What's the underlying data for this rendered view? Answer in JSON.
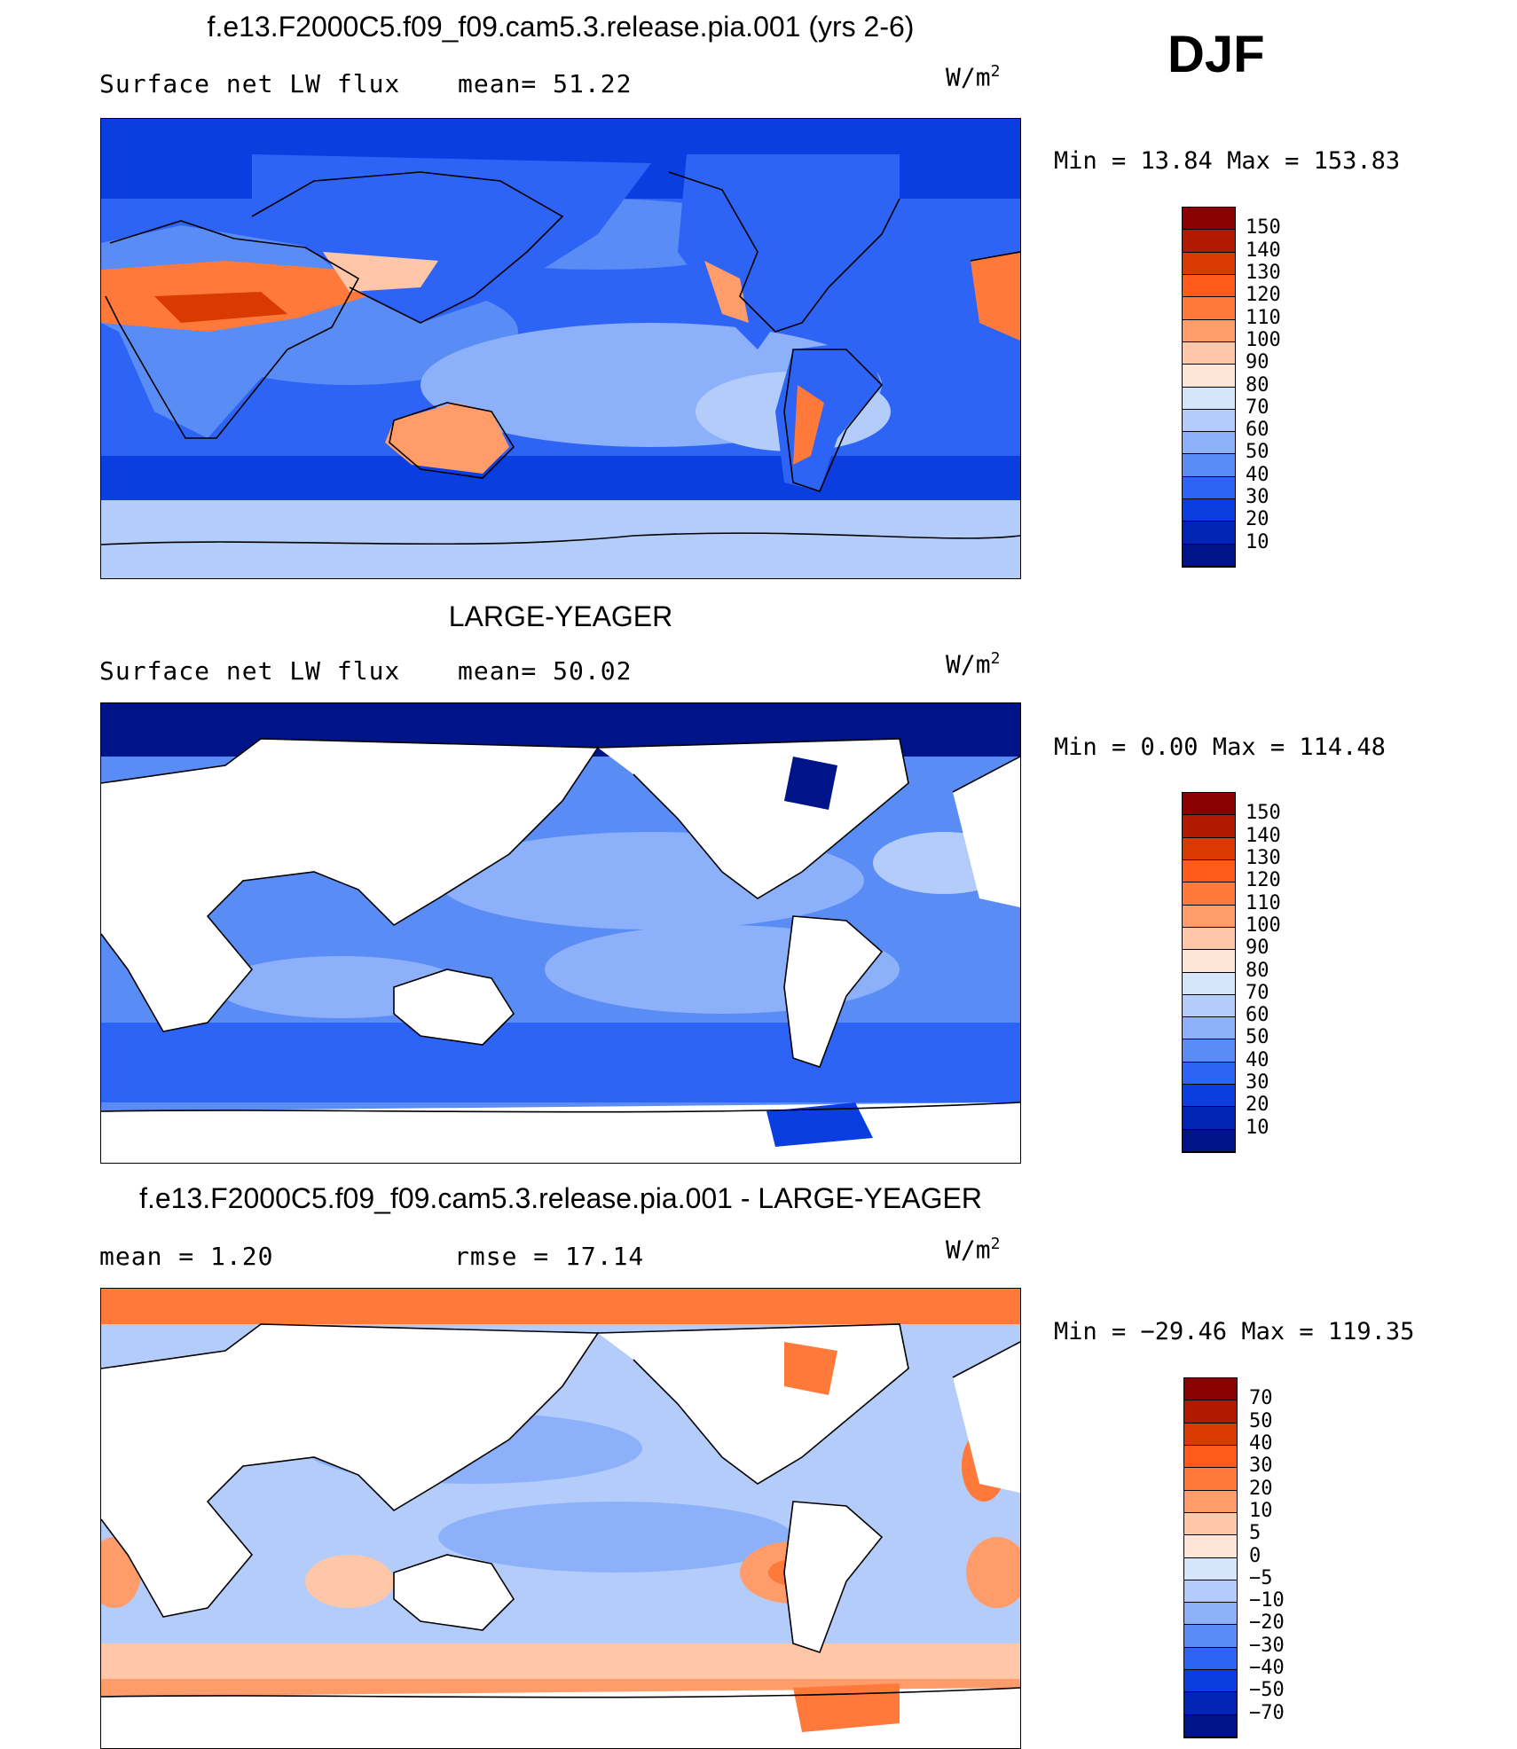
{
  "figure": {
    "season": "DJF"
  },
  "panels": [
    {
      "id": "model",
      "title": "f.e13.F2000C5.f09_f09.cam5.3.release.pia.001 (yrs 2-6)",
      "left_label": "Surface net LW flux",
      "mid_label": "mean=   51.22",
      "units_base": "W/m",
      "units_exp": "2",
      "minmax": "Min =   13.84 Max = 153.83",
      "colorbar": {
        "levels": [
          "150",
          "140",
          "130",
          "120",
          "110",
          "100",
          "90",
          "80",
          "70",
          "60",
          "50",
          "40",
          "30",
          "20",
          "10"
        ],
        "colors": [
          "#8b0000",
          "#b21a00",
          "#d93a00",
          "#ff5a1a",
          "#ff7a3a",
          "#ff9c6a",
          "#ffc6a8",
          "#fde6d6",
          "#d6e6fa",
          "#b4ccfa",
          "#8cb0fa",
          "#5a8cf5",
          "#2e64f5",
          "#0a3ee0",
          "#0024b4",
          "#00148a"
        ]
      }
    },
    {
      "id": "obs",
      "title": "LARGE-YEAGER",
      "left_label": "Surface net LW flux",
      "mid_label": "mean=   50.02",
      "units_base": "W/m",
      "units_exp": "2",
      "minmax": "Min =    0.00 Max = 114.48",
      "colorbar": {
        "levels": [
          "150",
          "140",
          "130",
          "120",
          "110",
          "100",
          "90",
          "80",
          "70",
          "60",
          "50",
          "40",
          "30",
          "20",
          "10"
        ],
        "colors": [
          "#8b0000",
          "#b21a00",
          "#d93a00",
          "#ff5a1a",
          "#ff7a3a",
          "#ff9c6a",
          "#ffc6a8",
          "#fde6d6",
          "#d6e6fa",
          "#b4ccfa",
          "#8cb0fa",
          "#5a8cf5",
          "#2e64f5",
          "#0a3ee0",
          "#0024b4",
          "#00148a"
        ]
      }
    },
    {
      "id": "diff",
      "title": "f.e13.F2000C5.f09_f09.cam5.3.release.pia.001 - LARGE-YEAGER",
      "left_label": "mean =    1.20",
      "mid_label": "rmse =   17.14",
      "units_base": "W/m",
      "units_exp": "2",
      "minmax": "Min = −29.46 Max = 119.35",
      "colorbar": {
        "levels": [
          "70",
          "50",
          "40",
          "30",
          "20",
          "10",
          "5",
          "0",
          "−5",
          "−10",
          "−20",
          "−30",
          "−40",
          "−50",
          "−70"
        ],
        "colors": [
          "#8b0000",
          "#b21a00",
          "#d93a00",
          "#ff5a1a",
          "#ff7a3a",
          "#ff9c6a",
          "#ffc6a8",
          "#fde6d6",
          "#d6e6fa",
          "#b4ccfa",
          "#8cb0fa",
          "#5a8cf5",
          "#2e64f5",
          "#0a3ee0",
          "#0024b4",
          "#00148a"
        ]
      }
    }
  ]
}
